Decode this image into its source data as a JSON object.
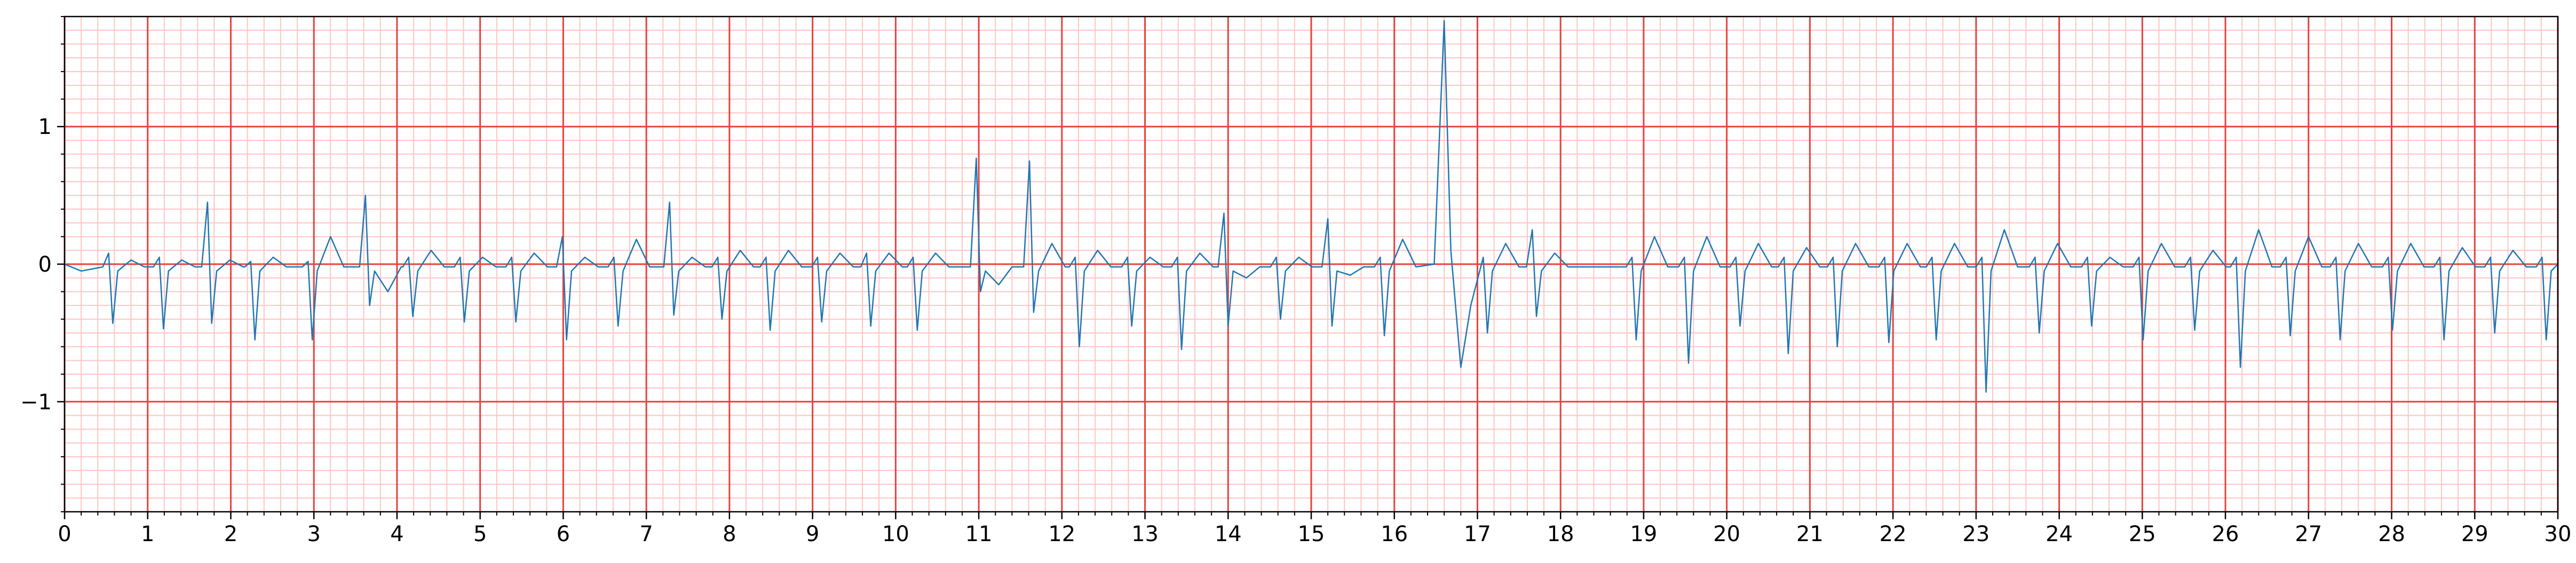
{
  "chart_data": {
    "type": "line",
    "color": "#1f77b4",
    "xlim": [
      0,
      30
    ],
    "ylim": [
      -1.8,
      1.8
    ],
    "xticks": [
      0,
      1,
      2,
      3,
      4,
      5,
      6,
      7,
      8,
      9,
      10,
      11,
      12,
      13,
      14,
      15,
      16,
      17,
      18,
      19,
      20,
      21,
      22,
      23,
      24,
      25,
      26,
      27,
      28,
      29,
      30
    ],
    "yticks": [
      {
        "value": -1,
        "label": "−1"
      },
      0,
      1
    ],
    "grid": true,
    "grid_color": "#e8413e",
    "minor_grid_color": "#ffc4c4",
    "x_minor_step": 0.2,
    "y_minor_step": 0.1,
    "x": [
      0,
      0.2,
      0.46,
      0.53,
      0.58,
      0.64,
      0.8,
      0.96,
      1.07,
      1.14,
      1.19,
      1.25,
      1.41,
      1.57,
      1.65,
      1.72,
      1.77,
      1.83,
      1.99,
      2.15,
      2.17,
      2.24,
      2.29,
      2.35,
      2.51,
      2.67,
      2.86,
      2.93,
      2.98,
      3.04,
      3.2,
      3.36,
      3.55,
      3.62,
      3.67,
      3.73,
      3.89,
      4.05,
      4.07,
      4.14,
      4.19,
      4.25,
      4.41,
      4.57,
      4.69,
      4.76,
      4.81,
      4.87,
      5.03,
      5.19,
      5.31,
      5.38,
      5.43,
      5.49,
      5.65,
      5.81,
      5.92,
      5.99,
      6.04,
      6.1,
      6.26,
      6.42,
      6.54,
      6.61,
      6.66,
      6.72,
      6.88,
      7.04,
      7.21,
      7.28,
      7.33,
      7.39,
      7.55,
      7.71,
      7.79,
      7.86,
      7.91,
      7.97,
      8.13,
      8.29,
      8.37,
      8.44,
      8.49,
      8.55,
      8.71,
      8.87,
      8.99,
      9.06,
      9.11,
      9.17,
      9.33,
      9.49,
      9.58,
      9.65,
      9.7,
      9.76,
      9.92,
      10.08,
      10.14,
      10.21,
      10.26,
      10.32,
      10.48,
      10.64,
      10.9,
      10.97,
      11.02,
      11.08,
      11.24,
      11.4,
      11.54,
      11.61,
      11.66,
      11.72,
      11.88,
      12.04,
      12.09,
      12.16,
      12.21,
      12.27,
      12.43,
      12.59,
      12.72,
      12.79,
      12.84,
      12.9,
      13.06,
      13.22,
      13.32,
      13.39,
      13.44,
      13.5,
      13.66,
      13.82,
      13.88,
      13.95,
      14.0,
      14.06,
      14.22,
      14.38,
      14.51,
      14.58,
      14.63,
      14.69,
      14.85,
      15.01,
      15.13,
      15.2,
      15.25,
      15.31,
      15.47,
      15.63,
      15.76,
      15.83,
      15.88,
      15.94,
      16.1,
      16.26,
      16.48,
      16.6,
      16.68,
      16.8,
      16.92,
      17.07,
      17.12,
      17.18,
      17.34,
      17.5,
      17.59,
      17.66,
      17.71,
      17.77,
      17.93,
      18.09,
      18.79,
      18.86,
      18.91,
      18.97,
      19.13,
      19.29,
      19.42,
      19.49,
      19.54,
      19.6,
      19.76,
      19.92,
      20.04,
      20.11,
      20.16,
      20.22,
      20.38,
      20.54,
      20.62,
      20.69,
      20.74,
      20.8,
      20.96,
      21.12,
      21.21,
      21.28,
      21.33,
      21.39,
      21.55,
      21.71,
      21.83,
      21.9,
      21.95,
      22.01,
      22.17,
      22.33,
      22.4,
      22.47,
      22.52,
      22.58,
      22.74,
      22.9,
      23.0,
      23.07,
      23.12,
      23.18,
      23.34,
      23.5,
      23.64,
      23.71,
      23.76,
      23.82,
      23.98,
      24.14,
      24.27,
      24.34,
      24.39,
      24.45,
      24.61,
      24.77,
      24.89,
      24.96,
      25.01,
      25.07,
      25.23,
      25.39,
      25.51,
      25.58,
      25.63,
      25.69,
      25.85,
      26.01,
      26.06,
      26.13,
      26.18,
      26.24,
      26.4,
      26.56,
      26.66,
      26.73,
      26.78,
      26.84,
      27.0,
      27.16,
      27.26,
      27.33,
      27.38,
      27.44,
      27.6,
      27.76,
      27.89,
      27.96,
      28.01,
      28.07,
      28.23,
      28.39,
      28.51,
      28.58,
      28.63,
      28.69,
      28.85,
      29.01,
      29.12,
      29.19,
      29.24,
      29.3,
      29.46,
      29.62,
      29.74,
      29.81,
      29.86,
      29.92,
      30.0
    ],
    "values": [
      0.0,
      -0.05,
      -0.02,
      0.08,
      -0.43,
      -0.05,
      0.03,
      -0.02,
      -0.02,
      0.05,
      -0.47,
      -0.05,
      0.03,
      -0.02,
      -0.02,
      0.45,
      -0.43,
      -0.05,
      0.03,
      -0.02,
      -0.02,
      0.02,
      -0.55,
      -0.05,
      0.05,
      -0.02,
      -0.02,
      0.02,
      -0.55,
      -0.05,
      0.2,
      -0.02,
      -0.02,
      0.5,
      -0.3,
      -0.05,
      -0.2,
      -0.02,
      -0.02,
      0.05,
      -0.38,
      -0.05,
      0.1,
      -0.02,
      -0.02,
      0.05,
      -0.42,
      -0.05,
      0.05,
      -0.02,
      -0.02,
      0.05,
      -0.42,
      -0.05,
      0.08,
      -0.02,
      -0.02,
      0.2,
      -0.55,
      -0.05,
      0.05,
      -0.02,
      -0.02,
      0.05,
      -0.45,
      -0.05,
      0.18,
      -0.02,
      -0.02,
      0.45,
      -0.37,
      -0.05,
      0.05,
      -0.02,
      -0.02,
      0.05,
      -0.4,
      -0.05,
      0.1,
      -0.02,
      -0.02,
      0.05,
      -0.48,
      -0.05,
      0.1,
      -0.02,
      -0.02,
      0.05,
      -0.42,
      -0.05,
      0.08,
      -0.02,
      -0.02,
      0.08,
      -0.45,
      -0.05,
      0.08,
      -0.02,
      -0.02,
      0.05,
      -0.48,
      -0.05,
      0.08,
      -0.02,
      -0.02,
      0.77,
      -0.2,
      -0.05,
      -0.15,
      -0.02,
      -0.02,
      0.75,
      -0.35,
      -0.05,
      0.15,
      -0.02,
      -0.02,
      0.05,
      -0.6,
      -0.05,
      0.1,
      -0.02,
      -0.02,
      0.05,
      -0.45,
      -0.05,
      0.05,
      -0.02,
      -0.02,
      0.05,
      -0.62,
      -0.05,
      0.08,
      -0.02,
      -0.02,
      0.37,
      -0.45,
      -0.05,
      -0.1,
      -0.02,
      -0.02,
      0.05,
      -0.4,
      -0.05,
      0.05,
      -0.02,
      -0.02,
      0.33,
      -0.45,
      -0.05,
      -0.08,
      -0.02,
      -0.02,
      0.05,
      -0.52,
      -0.05,
      0.18,
      -0.02,
      0.0,
      1.77,
      0.1,
      -0.75,
      -0.3,
      0.05,
      -0.5,
      -0.05,
      0.15,
      -0.02,
      -0.02,
      0.25,
      -0.38,
      -0.05,
      0.08,
      -0.02,
      -0.02,
      0.05,
      -0.55,
      -0.05,
      0.2,
      -0.02,
      -0.02,
      0.05,
      -0.72,
      -0.05,
      0.2,
      -0.02,
      -0.02,
      0.05,
      -0.45,
      -0.05,
      0.15,
      -0.02,
      -0.02,
      0.05,
      -0.65,
      -0.05,
      0.12,
      -0.02,
      -0.02,
      0.05,
      -0.6,
      -0.05,
      0.15,
      -0.02,
      -0.02,
      0.05,
      -0.57,
      -0.05,
      0.15,
      -0.02,
      -0.02,
      0.05,
      -0.55,
      -0.05,
      0.15,
      -0.02,
      -0.02,
      0.05,
      -0.93,
      -0.05,
      0.25,
      -0.02,
      -0.02,
      0.05,
      -0.5,
      -0.05,
      0.15,
      -0.02,
      -0.02,
      0.05,
      -0.45,
      -0.05,
      0.05,
      -0.02,
      -0.02,
      0.05,
      -0.55,
      -0.05,
      0.15,
      -0.02,
      -0.02,
      0.05,
      -0.48,
      -0.05,
      0.1,
      -0.02,
      -0.02,
      0.05,
      -0.75,
      -0.05,
      0.25,
      -0.02,
      -0.02,
      0.05,
      -0.52,
      -0.05,
      0.2,
      -0.02,
      -0.02,
      0.05,
      -0.55,
      -0.05,
      0.15,
      -0.02,
      -0.02,
      0.05,
      -0.48,
      -0.05,
      0.15,
      -0.02,
      -0.02,
      0.05,
      -0.55,
      -0.05,
      0.12,
      -0.02,
      -0.02,
      0.05,
      -0.5,
      -0.05,
      0.1,
      -0.02,
      -0.02,
      0.05,
      -0.55,
      -0.05,
      0.0
    ]
  }
}
